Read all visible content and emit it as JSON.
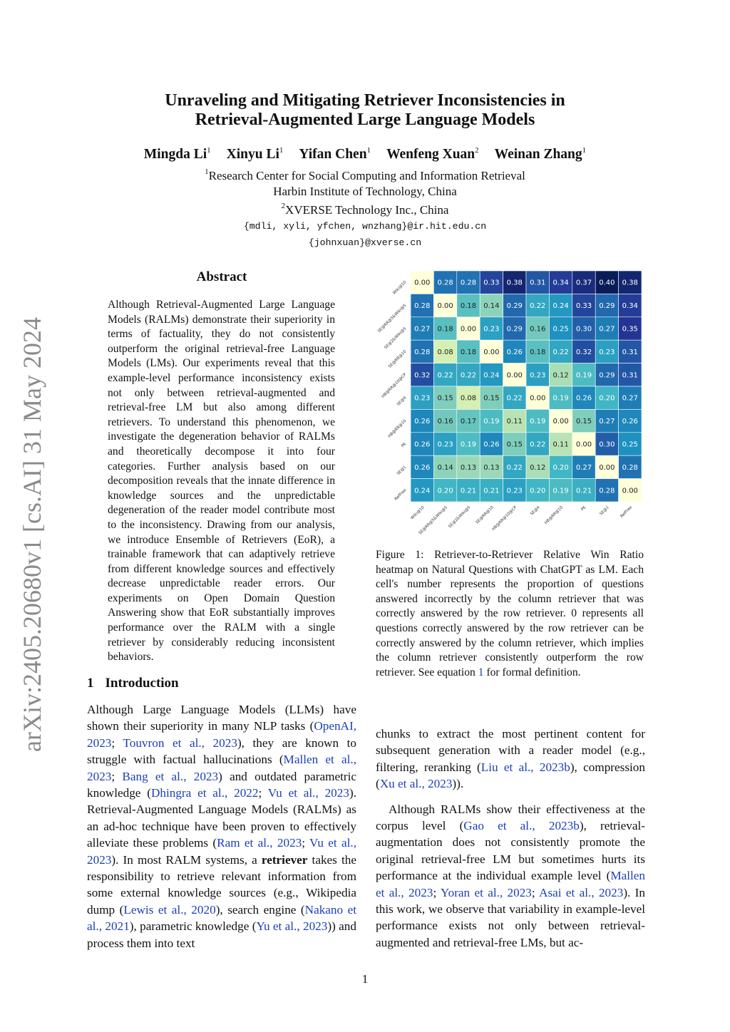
{
  "title": [
    "Unraveling and Mitigating Retriever Inconsistencies in",
    "Retrieval-Augmented Large Language Models"
  ],
  "authors": [
    {
      "name": "Mingda Li",
      "aff": "1"
    },
    {
      "name": "Xinyu Li",
      "aff": "1"
    },
    {
      "name": "Yifan Chen",
      "aff": "1"
    },
    {
      "name": "Wenfeng Xuan",
      "aff": "2"
    },
    {
      "name": "Weinan Zhang",
      "aff": "1"
    }
  ],
  "affiliations": {
    "a1_mark": "1",
    "a1_line1": "Research Center for Social Computing and Information Retrieval",
    "a1_line2": "Harbin Institute of Technology, China",
    "a2_mark": "2",
    "a2_line1": "XVERSE Technology Inc., China",
    "email1": "{mdli, xyli, yfchen, wnzhang}@ir.hit.edu.cn",
    "email2": "{johnxuan}@xverse.cn"
  },
  "arxiv_stamp": "arXiv:2405.20680v1  [cs.AI]  31 May 2024",
  "abstract": {
    "heading": "Abstract",
    "text": "Although Retrieval-Augmented Large Language Models (RALMs) demonstrate their superiority in terms of factuality, they do not consistently outperform the original retrieval-free Language Models (LMs). Our experiments reveal that this example-level performance inconsistency exists not only between retrieval-augmented and retrieval-free LM but also among different retrievers. To understand this phenomenon, we investigate the degeneration behavior of RALMs and theoretically decompose it into four categories. Further analysis based on our decomposition reveals that the innate difference in knowledge sources and the unpredictable degeneration of the reader model contribute most to the inconsistency. Drawing from our analysis, we introduce Ensemble of Retrievers (EoR), a trainable framework that can adaptively retrieve from different knowledge sources and effectively decrease unpredictable reader errors. Our experiments on Open Domain Question Answering show that EoR substantially improves performance over the RALM with a single retriever by considerably reducing inconsistent behaviors."
  },
  "intro": {
    "number": "1",
    "heading": "Introduction",
    "left": [
      {
        "t": "Although Large Language Models (LLMs) have shown their superiority in many NLP tasks ("
      },
      {
        "t": "OpenAI, 2023",
        "k": "link"
      },
      {
        "t": "; "
      },
      {
        "t": "Touvron et al., 2023",
        "k": "link"
      },
      {
        "t": "), they are known to struggle with factual hallucinations ("
      },
      {
        "t": "Mallen et al., 2023",
        "k": "link"
      },
      {
        "t": "; "
      },
      {
        "t": "Bang et al., 2023",
        "k": "link"
      },
      {
        "t": ") and outdated parametric knowledge ("
      },
      {
        "t": "Dhingra et al., 2022",
        "k": "link"
      },
      {
        "t": "; "
      },
      {
        "t": "Vu et al., 2023",
        "k": "link"
      },
      {
        "t": "). Retrieval-Augmented Language Models (RALMs) as an ad-hoc technique have been proven to effectively alleviate these problems ("
      },
      {
        "t": "Ram et al., 2023",
        "k": "link"
      },
      {
        "t": "; "
      },
      {
        "t": "Vu et al., 2023",
        "k": "link"
      },
      {
        "t": "). In most RALM systems, a "
      },
      {
        "t": "retriever",
        "k": "bold"
      },
      {
        "t": " takes the responsibility to retrieve relevant information from some external knowledge sources (e.g., Wikipedia dump ("
      },
      {
        "t": "Lewis et al., 2020",
        "k": "link"
      },
      {
        "t": "), search engine ("
      },
      {
        "t": "Nakano et al., 2021",
        "k": "link"
      },
      {
        "t": "), parametric knowledge ("
      },
      {
        "t": "Yu et al., 2023",
        "k": "link"
      },
      {
        "t": ")) and process them into text"
      }
    ],
    "right": [
      [
        {
          "t": "chunks to extract the most pertinent content for subsequent generation with a reader model (e.g., filtering, reranking ("
        },
        {
          "t": "Liu et al., 2023b",
          "k": "link"
        },
        {
          "t": "), compression ("
        },
        {
          "t": "Xu et al., 2023",
          "k": "link"
        },
        {
          "t": "))."
        }
      ],
      [
        {
          "t": "Although RALMs show their effectiveness at the corpus level ("
        },
        {
          "t": "Gao et al., 2023b",
          "k": "link"
        },
        {
          "t": "), retrieval-augmentation does not consistently promote the original retrieval-free LM but sometimes hurts its performance at the individual example level ("
        },
        {
          "t": "Mallen et al., 2023",
          "k": "link"
        },
        {
          "t": "; "
        },
        {
          "t": "Yoran et al., 2023",
          "k": "link"
        },
        {
          "t": "; "
        },
        {
          "t": "Asai et al., 2023",
          "k": "link"
        },
        {
          "t": "). In this work, we observe that variability in example-level performance exists not only between retrieval-augmented and retrieval-free LMs, but ac-"
        }
      ]
    ]
  },
  "figure1": {
    "caption": [
      {
        "t": "Figure 1:  Retriever-to-Retriever Relative Win Ratio heatmap on Natural Questions with ChatGPT as LM. Each cell's number represents the proportion of questions answered incorrectly by the column retriever that was correctly answered by the row retriever. 0 represents all questions correctly answered by the row retriever can be correctly answered by the column retriever, which implies the column retriever consistently outperform the row retriever. See equation "
      },
      {
        "t": "1",
        "k": "link"
      },
      {
        "t": " for formal definition."
      }
    ]
  },
  "chart_data": {
    "type": "heatmap",
    "colormap": "YlGnBu",
    "value_range": [
      0,
      0.4
    ],
    "rows": [
      "Wiki@10",
      "SE@RR@5&Wiki@5",
      "SE@2&Wiki@5",
      "SE@RR@10",
      "HB@RR@10@CP",
      "SE@4",
      "HB@RR@10",
      "PK",
      "SE@1",
      "RefFree"
    ],
    "columns": [
      "Wiki@10",
      "SE@RR@5&Wiki@5",
      "SE@2&Wiki@5",
      "SE@RR@10",
      "HB@RR@10@CP",
      "SE@4",
      "HB@RR@10",
      "PK",
      "SE@1",
      "RefFree"
    ],
    "values": [
      [
        0.0,
        0.28,
        0.28,
        0.33,
        0.38,
        0.31,
        0.34,
        0.37,
        0.4,
        0.38
      ],
      [
        0.28,
        0.0,
        0.18,
        0.14,
        0.29,
        0.22,
        0.24,
        0.33,
        0.29,
        0.34
      ],
      [
        0.27,
        0.18,
        0.0,
        0.23,
        0.29,
        0.16,
        0.25,
        0.3,
        0.27,
        0.35
      ],
      [
        0.28,
        0.08,
        0.18,
        0.0,
        0.26,
        0.18,
        0.22,
        0.32,
        0.23,
        0.31
      ],
      [
        0.32,
        0.22,
        0.22,
        0.24,
        0.0,
        0.23,
        0.12,
        0.19,
        0.29,
        0.31
      ],
      [
        0.23,
        0.15,
        0.08,
        0.15,
        0.22,
        0.0,
        0.19,
        0.26,
        0.2,
        0.27
      ],
      [
        0.26,
        0.16,
        0.17,
        0.19,
        0.11,
        0.19,
        0.0,
        0.15,
        0.27,
        0.26
      ],
      [
        0.26,
        0.23,
        0.19,
        0.26,
        0.15,
        0.22,
        0.11,
        0.0,
        0.3,
        0.25
      ],
      [
        0.26,
        0.14,
        0.13,
        0.13,
        0.22,
        0.12,
        0.2,
        0.27,
        0.0,
        0.28
      ],
      [
        0.24,
        0.2,
        0.21,
        0.21,
        0.23,
        0.2,
        0.19,
        0.21,
        0.28,
        0.0
      ]
    ]
  },
  "page_number": "1"
}
